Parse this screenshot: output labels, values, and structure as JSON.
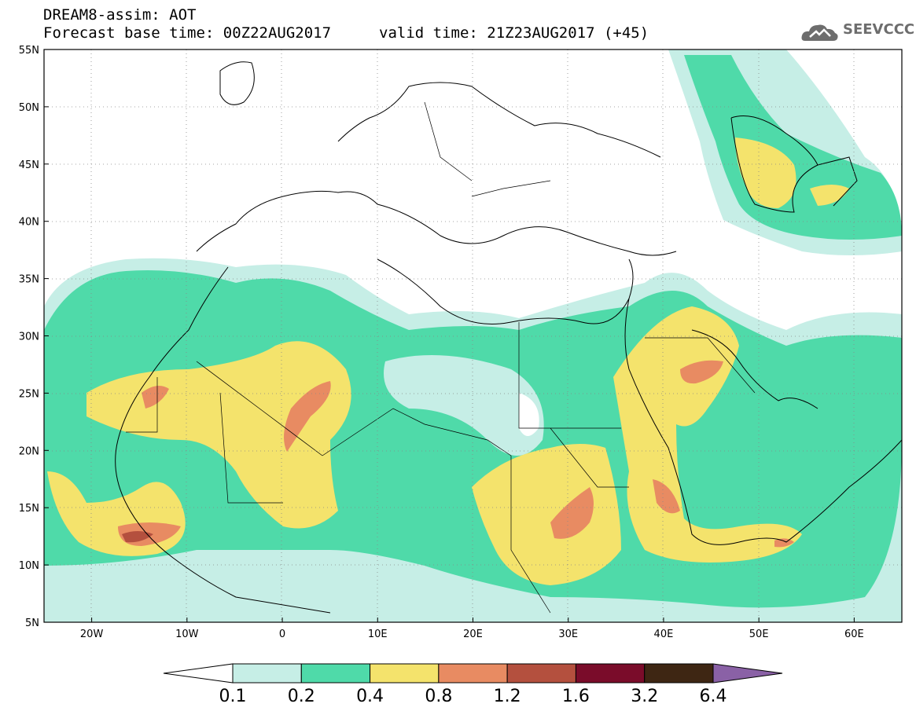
{
  "header": {
    "line1": "DREAM8-assim: AOT",
    "line2_left": "Forecast base time: 00Z22AUG2017",
    "line2_right": "valid time: 21Z23AUG2017 (+45)",
    "logo_text": "SEEVCCC"
  },
  "map": {
    "lon_range": [
      -25,
      65
    ],
    "lat_range": [
      5,
      55
    ],
    "lat_labels": [
      "55N",
      "50N",
      "45N",
      "40N",
      "35N",
      "30N",
      "25N",
      "20N",
      "15N",
      "10N",
      "5N"
    ],
    "lon_labels": [
      "20W",
      "10W",
      "0",
      "10E",
      "20E",
      "30E",
      "40E",
      "50E",
      "60E"
    ]
  },
  "colorbar": {
    "labels": [
      "0.1",
      "0.2",
      "0.4",
      "0.8",
      "1.2",
      "1.6",
      "3.2",
      "6.4"
    ],
    "colors": [
      "#ffffff",
      "#c6eee6",
      "#4fdaa9",
      "#f4e36c",
      "#e88b62",
      "#b4503e",
      "#7a0c2a",
      "#3e2613",
      "#8a61a6"
    ]
  }
}
